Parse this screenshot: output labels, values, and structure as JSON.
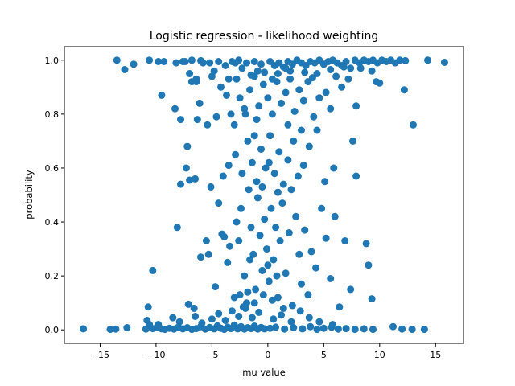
{
  "chart_data": {
    "type": "scatter",
    "title": "Logistic regression - likelihood weighting",
    "xlabel": "mu value",
    "ylabel": "probability",
    "xlim": [
      -18.2,
      17.5
    ],
    "ylim": [
      -0.05,
      1.05
    ],
    "xticks": [
      -15,
      -10,
      -5,
      0,
      5,
      10,
      15
    ],
    "xtick_labels": [
      "−15",
      "−10",
      "−5",
      "0",
      "5",
      "10",
      "15"
    ],
    "yticks": [
      0.0,
      0.2,
      0.4,
      0.6,
      0.8,
      1.0
    ],
    "ytick_labels": [
      "0.0",
      "0.2",
      "0.4",
      "0.6",
      "0.8",
      "1.0"
    ],
    "grid": false,
    "legend": "none",
    "marker_color": "#1f77b4",
    "series": [
      {
        "points": [
          [
            -16.5,
            0.004
          ],
          [
            -14.1,
            0.002
          ],
          [
            -13.6,
            0.003
          ],
          [
            -12.6,
            0.008
          ],
          [
            -10.9,
            0.003
          ],
          [
            -10.6,
            0.02
          ],
          [
            -10.3,
            0.005
          ],
          [
            -9.9,
            0.01
          ],
          [
            -9.5,
            0.004
          ],
          [
            -9.2,
            0.002
          ],
          [
            -8.8,
            0.006
          ],
          [
            -8.4,
            0.003
          ],
          [
            -8.0,
            0.01
          ],
          [
            -7.6,
            0.004
          ],
          [
            -7.2,
            0.008
          ],
          [
            -6.8,
            0.002
          ],
          [
            -6.4,
            0.005
          ],
          [
            -6.0,
            0.012
          ],
          [
            -5.6,
            0.003
          ],
          [
            -5.2,
            0.009
          ],
          [
            -4.8,
            0.004
          ],
          [
            -4.5,
            0.015
          ],
          [
            -4.2,
            0.006
          ],
          [
            -3.9,
            0.002
          ],
          [
            -3.6,
            0.01
          ],
          [
            -3.3,
            0.005
          ],
          [
            -3.0,
            0.018
          ],
          [
            -2.7,
            0.004
          ],
          [
            -2.4,
            0.012
          ],
          [
            -2.1,
            0.003
          ],
          [
            -1.8,
            0.008
          ],
          [
            -1.5,
            0.005
          ],
          [
            -1.2,
            0.014
          ],
          [
            -0.9,
            0.003
          ],
          [
            -0.6,
            0.009
          ],
          [
            -0.3,
            0.004
          ],
          [
            0.2,
            0.006
          ],
          [
            0.7,
            0.01
          ],
          [
            1.5,
            0.003
          ],
          [
            2.3,
            0.008
          ],
          [
            3.1,
            0.004
          ],
          [
            3.8,
            0.012
          ],
          [
            4.4,
            0.002
          ],
          [
            5.0,
            0.006
          ],
          [
            5.7,
            0.01
          ],
          [
            6.3,
            0.003
          ],
          [
            7.0,
            0.005
          ],
          [
            7.8,
            0.002
          ],
          [
            8.6,
            0.004
          ],
          [
            9.4,
            0.002
          ],
          [
            11.2,
            0.012
          ],
          [
            12.0,
            0.003
          ],
          [
            12.9,
            0.002
          ],
          [
            14.0,
            0.002
          ],
          [
            -10.8,
            0.035
          ],
          [
            -9.8,
            0.02
          ],
          [
            -8.5,
            0.045
          ],
          [
            -7.9,
            0.03
          ],
          [
            -6.5,
            0.05
          ],
          [
            -5.9,
            0.025
          ],
          [
            -5.0,
            0.04
          ],
          [
            -4.4,
            0.06
          ],
          [
            -3.8,
            0.035
          ],
          [
            -3.2,
            0.07
          ],
          [
            -2.6,
            0.05
          ],
          [
            -2.0,
            0.08
          ],
          [
            -1.4,
            0.045
          ],
          [
            -0.8,
            0.065
          ],
          [
            0.5,
            0.04
          ],
          [
            1.2,
            0.055
          ],
          [
            2.1,
            0.03
          ],
          [
            2.9,
            0.07
          ],
          [
            3.7,
            0.045
          ],
          [
            4.6,
            0.03
          ],
          [
            5.8,
            0.02
          ],
          [
            -10.7,
            0.085
          ],
          [
            -10.3,
            0.22
          ],
          [
            -8.1,
            0.38
          ],
          [
            -7.1,
            0.095
          ],
          [
            -6.6,
            0.08
          ],
          [
            -6.0,
            0.27
          ],
          [
            -5.5,
            0.33
          ],
          [
            -5.3,
            0.28
          ],
          [
            -4.7,
            0.16
          ],
          [
            -4.4,
            0.47
          ],
          [
            -4.1,
            0.355
          ],
          [
            -3.9,
            0.345
          ],
          [
            -3.6,
            0.25
          ],
          [
            -3.4,
            0.31
          ],
          [
            -3.0,
            0.12
          ],
          [
            -2.8,
            0.4
          ],
          [
            -2.6,
            0.33
          ],
          [
            -2.4,
            0.45
          ],
          [
            -2.1,
            0.2
          ],
          [
            -1.9,
            0.1
          ],
          [
            -1.7,
            0.52
          ],
          [
            -1.5,
            0.38
          ],
          [
            -1.3,
            0.28
          ],
          [
            -1.1,
            0.15
          ],
          [
            -0.9,
            0.49
          ],
          [
            -0.7,
            0.35
          ],
          [
            -0.5,
            0.22
          ],
          [
            -0.3,
            0.41
          ],
          [
            -0.1,
            0.3
          ],
          [
            0.1,
            0.18
          ],
          [
            0.3,
            0.45
          ],
          [
            0.5,
            0.26
          ],
          [
            0.7,
            0.38
          ],
          [
            0.9,
            0.12
          ],
          [
            1.1,
            0.33
          ],
          [
            1.3,
            0.47
          ],
          [
            1.6,
            0.21
          ],
          [
            1.9,
            0.36
          ],
          [
            2.2,
            0.09
          ],
          [
            2.5,
            0.42
          ],
          [
            2.8,
            0.28
          ],
          [
            3.0,
            0.17
          ],
          [
            3.3,
            0.37
          ],
          [
            3.6,
            0.13
          ],
          [
            3.9,
            0.29
          ],
          [
            4.3,
            0.23
          ],
          [
            4.8,
            0.45
          ],
          [
            5.2,
            0.34
          ],
          [
            5.6,
            0.19
          ],
          [
            6.0,
            0.42
          ],
          [
            6.4,
            0.085
          ],
          [
            6.9,
            0.33
          ],
          [
            7.4,
            0.15
          ],
          [
            8.8,
            0.32
          ],
          [
            9.0,
            0.24
          ],
          [
            9.3,
            0.115
          ],
          [
            -2.5,
            0.13
          ],
          [
            -2.2,
            0.085
          ],
          [
            -1.8,
            0.14
          ],
          [
            -1.6,
            0.26
          ],
          [
            -1.2,
            0.1
          ],
          [
            -0.4,
            0.13
          ],
          [
            0.0,
            0.24
          ],
          [
            0.4,
            0.11
          ],
          [
            0.8,
            0.2
          ],
          [
            1.4,
            0.08
          ],
          [
            -7.8,
            0.54
          ],
          [
            -7.3,
            0.6
          ],
          [
            -7.0,
            0.555
          ],
          [
            -6.5,
            0.56
          ],
          [
            -5.1,
            0.53
          ],
          [
            -4.0,
            0.57
          ],
          [
            -3.5,
            0.61
          ],
          [
            -2.9,
            0.65
          ],
          [
            -2.3,
            0.58
          ],
          [
            -1.8,
            0.7
          ],
          [
            -1.4,
            0.62
          ],
          [
            -1.0,
            0.55
          ],
          [
            -0.6,
            0.67
          ],
          [
            -0.2,
            0.6
          ],
          [
            0.2,
            0.72
          ],
          [
            0.6,
            0.58
          ],
          [
            1.0,
            0.66
          ],
          [
            1.4,
            0.54
          ],
          [
            1.8,
            0.63
          ],
          [
            2.3,
            0.7
          ],
          [
            2.7,
            0.57
          ],
          [
            3.2,
            0.61
          ],
          [
            3.7,
            0.68
          ],
          [
            4.4,
            0.74
          ],
          [
            5.1,
            0.55
          ],
          [
            5.9,
            0.6
          ],
          [
            7.6,
            0.7
          ],
          [
            7.9,
            0.57
          ],
          [
            -2.0,
            0.8
          ],
          [
            -1.2,
            0.72
          ],
          [
            0.1,
            0.62
          ],
          [
            0.9,
            0.51
          ],
          [
            2.1,
            0.52
          ],
          [
            -0.5,
            0.53
          ],
          [
            -7.2,
            0.68
          ],
          [
            -6.3,
            0.78
          ],
          [
            -6.1,
            0.84
          ],
          [
            -5.4,
            0.76
          ],
          [
            -4.6,
            0.79
          ],
          [
            -4.2,
            0.9
          ],
          [
            -3.7,
            0.87
          ],
          [
            -3.3,
            0.8
          ],
          [
            -2.8,
            0.93
          ],
          [
            -2.5,
            0.86
          ],
          [
            -2.1,
            0.82
          ],
          [
            -1.6,
            0.89
          ],
          [
            -1.2,
            0.94
          ],
          [
            -0.8,
            0.83
          ],
          [
            -0.4,
            0.91
          ],
          [
            0.0,
            0.86
          ],
          [
            0.4,
            0.8
          ],
          [
            0.8,
            0.92
          ],
          [
            1.2,
            0.84
          ],
          [
            1.6,
            0.88
          ],
          [
            2.0,
            0.93
          ],
          [
            2.4,
            0.81
          ],
          [
            2.8,
            0.89
          ],
          [
            3.2,
            0.85
          ],
          [
            3.6,
            0.92
          ],
          [
            4.1,
            0.79
          ],
          [
            4.6,
            0.86
          ],
          [
            5.2,
            0.88
          ],
          [
            5.6,
            0.82
          ],
          [
            6.1,
            0.94
          ],
          [
            6.6,
            0.9
          ],
          [
            7.2,
            0.93
          ],
          [
            7.9,
            0.83
          ],
          [
            9.7,
            0.92
          ],
          [
            12.2,
            0.89
          ],
          [
            13.0,
            0.76
          ],
          [
            -9.5,
            0.87
          ],
          [
            -8.3,
            0.82
          ],
          [
            -7.8,
            0.78
          ],
          [
            -6.8,
            0.92
          ],
          [
            -6.4,
            0.93
          ],
          [
            -5.0,
            0.94
          ],
          [
            -3.0,
            0.76
          ],
          [
            -1.0,
            0.78
          ],
          [
            1.8,
            0.76
          ],
          [
            3.0,
            0.74
          ],
          [
            -13.5,
            1.0
          ],
          [
            -12.8,
            0.965
          ],
          [
            -12.0,
            0.985
          ],
          [
            -10.6,
            1.0
          ],
          [
            -9.8,
            0.995
          ],
          [
            -9.3,
            0.995
          ],
          [
            -8.2,
            0.99
          ],
          [
            -7.4,
            0.995
          ],
          [
            -6.8,
            1.0
          ],
          [
            -6.0,
            0.998
          ],
          [
            -5.2,
            0.99
          ],
          [
            -4.4,
            0.995
          ],
          [
            -3.8,
            0.98
          ],
          [
            -3.2,
            0.995
          ],
          [
            -2.6,
            1.0
          ],
          [
            -1.9,
            0.99
          ],
          [
            -1.2,
            0.995
          ],
          [
            -0.6,
            0.985
          ],
          [
            0.2,
            0.995
          ],
          [
            0.6,
            0.98
          ],
          [
            1.0,
            0.99
          ],
          [
            1.4,
            0.975
          ],
          [
            1.8,
            0.995
          ],
          [
            2.2,
            0.985
          ],
          [
            2.6,
            1.0
          ],
          [
            3.0,
            0.99
          ],
          [
            3.4,
            0.98
          ],
          [
            3.8,
            0.995
          ],
          [
            4.2,
            0.99
          ],
          [
            4.6,
            1.0
          ],
          [
            5.0,
            0.985
          ],
          [
            5.4,
            0.995
          ],
          [
            5.8,
            1.0
          ],
          [
            6.2,
            0.99
          ],
          [
            6.6,
            0.98
          ],
          [
            7.0,
            0.995
          ],
          [
            7.4,
            0.97
          ],
          [
            7.8,
            1.0
          ],
          [
            8.2,
            0.99
          ],
          [
            8.6,
            1.0
          ],
          [
            9.0,
            0.995
          ],
          [
            9.4,
            1.0
          ],
          [
            9.8,
            0.99
          ],
          [
            10.2,
            1.0
          ],
          [
            10.6,
            0.995
          ],
          [
            11.0,
            1.0
          ],
          [
            11.4,
            0.99
          ],
          [
            11.8,
            1.0
          ],
          [
            12.3,
            0.998
          ],
          [
            14.3,
            1.0
          ],
          [
            15.8,
            0.992
          ],
          [
            -7.6,
            0.995
          ],
          [
            -7.0,
            0.95
          ],
          [
            -6.4,
            0.92
          ],
          [
            -5.8,
            0.99
          ],
          [
            -4.8,
            0.96
          ],
          [
            -3.5,
            0.93
          ],
          [
            -2.3,
            0.97
          ],
          [
            -1.5,
            0.945
          ],
          [
            -0.3,
            0.955
          ],
          [
            0.9,
            0.95
          ],
          [
            2.0,
            0.96
          ],
          [
            3.3,
            0.955
          ],
          [
            4.4,
            0.95
          ],
          [
            5.6,
            0.965
          ],
          [
            6.8,
            0.975
          ],
          [
            8.3,
            0.97
          ],
          [
            9.3,
            0.96
          ],
          [
            10.0,
            0.915
          ],
          [
            0.4,
            0.93
          ],
          [
            -0.9,
            0.96
          ],
          [
            1.6,
            0.97
          ],
          [
            -2.9,
            0.99
          ],
          [
            4.0,
            0.935
          ]
        ]
      }
    ]
  }
}
